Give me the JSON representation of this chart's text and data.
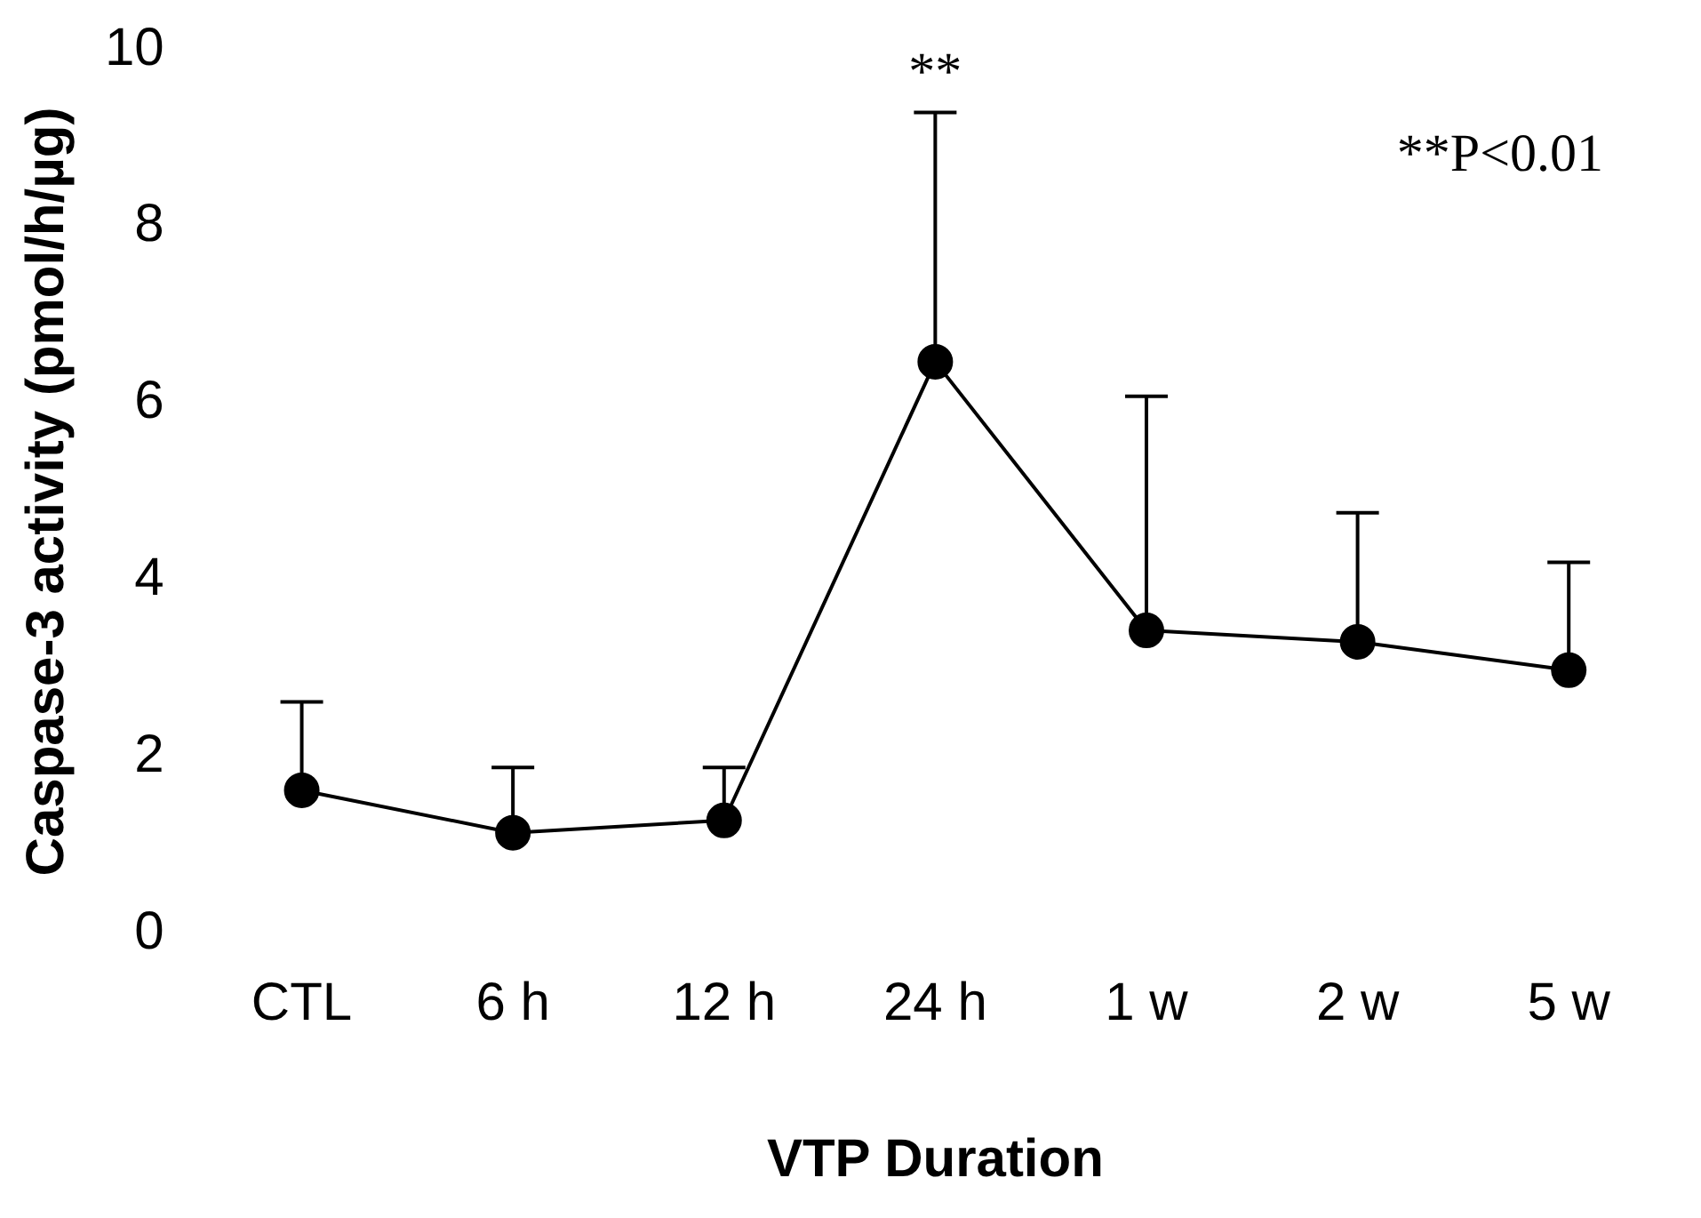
{
  "chart_data": {
    "type": "line",
    "xlabel": "VTP Duration",
    "ylabel": "Caspase-3 activity (pmol/h/µg)",
    "categories": [
      "CTL",
      "6 h",
      "12 h",
      "24 h",
      "1 w",
      "2 w",
      "5 w"
    ],
    "series": [
      {
        "color": "#000000",
        "values": [
          1.62,
          1.14,
          1.28,
          6.47,
          3.43,
          3.3,
          2.98
        ],
        "errors": [
          [
            1.62,
            2.62
          ],
          [
            1.14,
            1.88
          ],
          [
            1.28,
            1.88
          ],
          [
            6.47,
            9.29
          ],
          [
            3.43,
            6.08
          ],
          [
            3.3,
            4.76
          ],
          [
            2.98,
            4.2
          ]
        ]
      }
    ],
    "ylim": [
      0,
      10
    ],
    "yticks": [
      0,
      2,
      4,
      6,
      8,
      10
    ],
    "grid": false,
    "legend": false,
    "marker": "circle",
    "line_style": "solid",
    "annotations": [
      "**",
      "**P<0.01"
    ]
  }
}
